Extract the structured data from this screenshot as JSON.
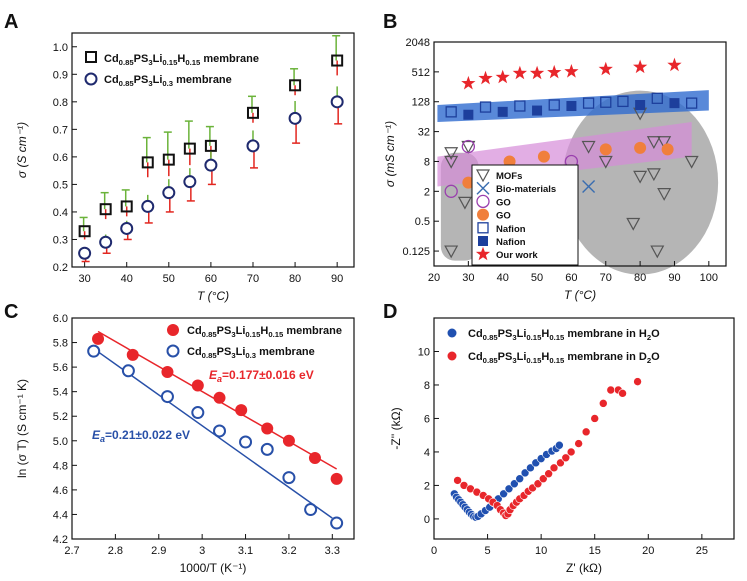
{
  "panels": {
    "A": "A",
    "B": "B",
    "C": "C",
    "D": "D"
  },
  "colors": {
    "black": "#111111",
    "navy": "#1f2a6e",
    "red": "#e8262b",
    "green": "#6bb33a",
    "errorRed": "#e2261f",
    "blue": "#2850a8",
    "lightBlue": "#2f6bd0",
    "orange": "#f07f3c",
    "purple": "#9a3fae",
    "gray": "#a8a8a8",
    "pink": "#d58bd9"
  },
  "chart_data": [
    {
      "panel": "A",
      "type": "scatter",
      "xlabel": "T (°C)",
      "ylabel": "σ (S cm⁻¹)",
      "xlim": [
        27,
        94
      ],
      "ylim": [
        0.2,
        1.05
      ],
      "xticks": [
        30,
        40,
        50,
        60,
        70,
        80,
        90
      ],
      "yticks": [
        0.2,
        0.3,
        0.4,
        0.5,
        0.6,
        0.7,
        0.8,
        0.9,
        1.0
      ],
      "legend": [
        "Cd0.85PS3Li0.15H0.15 membrane",
        "Cd0.85PS3Li0.3 membrane"
      ],
      "series": [
        {
          "name": "Cd0.85PS3Li0.15H0.15 membrane",
          "marker": "square",
          "x": [
            30,
            35,
            40,
            45,
            50,
            55,
            60,
            70,
            80,
            90
          ],
          "y": [
            0.33,
            0.41,
            0.42,
            0.58,
            0.59,
            0.63,
            0.64,
            0.76,
            0.86,
            0.95
          ],
          "err": [
            0.05,
            0.06,
            0.06,
            0.09,
            0.1,
            0.1,
            0.07,
            0.06,
            0.06,
            0.09
          ]
        },
        {
          "name": "Cd0.85PS3Li0.3 membrane",
          "marker": "circle",
          "x": [
            30,
            35,
            40,
            45,
            50,
            55,
            60,
            70,
            80,
            90
          ],
          "y": [
            0.25,
            0.29,
            0.34,
            0.42,
            0.47,
            0.51,
            0.57,
            0.64,
            0.74,
            0.8
          ],
          "err": [
            0.03,
            0.04,
            0.04,
            0.06,
            0.07,
            0.07,
            0.07,
            0.08,
            0.09,
            0.08
          ]
        }
      ]
    },
    {
      "panel": "B",
      "type": "scatter",
      "xlabel": "T (°C)",
      "ylabel": "σ (mS cm⁻¹)",
      "xlim": [
        20,
        105
      ],
      "ylim": [
        0.0625,
        2048
      ],
      "yscale": "log2",
      "xticks": [
        20,
        30,
        40,
        50,
        60,
        70,
        80,
        90,
        100
      ],
      "yticks": [
        0.125,
        0.5,
        2,
        8,
        32,
        128,
        512,
        2048
      ],
      "yticklabels": [
        "0.125",
        "0.5",
        "2",
        "8",
        "32",
        "128",
        "512",
        "2048"
      ],
      "legend": [
        "MOFs",
        "Bio-materials",
        "GO",
        "GO",
        "Nafion",
        "Nafion",
        "Our work"
      ],
      "series": [
        {
          "name": "MOFs",
          "marker": "triangle-down",
          "points": [
            [
              25,
              0.125
            ],
            [
              25,
              12
            ],
            [
              25,
              8
            ],
            [
              29,
              1.2
            ],
            [
              30,
              16
            ],
            [
              60,
              2
            ],
            [
              65,
              16
            ],
            [
              70,
              8
            ],
            [
              78,
              0.45
            ],
            [
              80,
              4
            ],
            [
              84,
              20
            ],
            [
              84,
              4.5
            ],
            [
              85,
              0.125
            ],
            [
              87,
              1.8
            ],
            [
              87,
              20
            ],
            [
              95,
              8
            ],
            [
              80,
              75
            ]
          ]
        },
        {
          "name": "Bio-materials",
          "marker": "x",
          "points": [
            [
              65,
              2.5
            ]
          ]
        },
        {
          "name": "GO",
          "marker": "open-circle",
          "points": [
            [
              25,
              2
            ],
            [
              30,
              16
            ],
            [
              60,
              8
            ]
          ]
        },
        {
          "name": "GO",
          "marker": "filled-circle",
          "points": [
            [
              30,
              3
            ],
            [
              42,
              8
            ],
            [
              52,
              10
            ],
            [
              70,
              14
            ],
            [
              80,
              15
            ],
            [
              88,
              14
            ]
          ]
        },
        {
          "name": "Nafion",
          "marker": "open-square",
          "points": [
            [
              25,
              80
            ],
            [
              35,
              100
            ],
            [
              45,
              105
            ],
            [
              55,
              110
            ],
            [
              65,
              120
            ],
            [
              70,
              125
            ],
            [
              75,
              130
            ],
            [
              85,
              150
            ],
            [
              95,
              120
            ]
          ]
        },
        {
          "name": "Nafion",
          "marker": "filled-square",
          "points": [
            [
              30,
              70
            ],
            [
              40,
              80
            ],
            [
              50,
              85
            ],
            [
              60,
              105
            ],
            [
              80,
              110
            ],
            [
              90,
              120
            ]
          ]
        },
        {
          "name": "Our work",
          "marker": "star",
          "points": [
            [
              30,
              300
            ],
            [
              35,
              380
            ],
            [
              40,
              400
            ],
            [
              45,
              480
            ],
            [
              50,
              480
            ],
            [
              55,
              500
            ],
            [
              60,
              520
            ],
            [
              70,
              580
            ],
            [
              80,
              640
            ],
            [
              90,
              700
            ]
          ]
        }
      ]
    },
    {
      "panel": "C",
      "type": "scatter",
      "xlabel": "1000/T (K⁻¹)",
      "ylabel": "ln (σ T) (S cm⁻¹ K)",
      "xlim": [
        2.7,
        3.35
      ],
      "ylim": [
        4.2,
        6.0
      ],
      "xticks": [
        2.7,
        2.8,
        2.9,
        3.0,
        3.1,
        3.2,
        3.3
      ],
      "yticks": [
        4.2,
        4.4,
        4.6,
        4.8,
        5.0,
        5.2,
        5.4,
        5.6,
        5.8,
        6.0
      ],
      "legend": [
        "Cd0.85PS3Li0.15H0.15 membrane",
        "Cd0.85PS3Li0.3 membrane"
      ],
      "annotations": [
        {
          "prefix": "E",
          "sub": "a",
          "value": "=0.177±0.016 eV"
        },
        {
          "prefix": "E",
          "sub": "a",
          "value": "=0.21±0.022 eV"
        }
      ],
      "series": [
        {
          "name": "Cd0.85PS3Li0.15H0.15 membrane",
          "marker": "filled-circle",
          "x": [
            2.76,
            2.84,
            2.92,
            2.99,
            3.04,
            3.09,
            3.15,
            3.2,
            3.26,
            3.31
          ],
          "y": [
            5.83,
            5.7,
            5.56,
            5.45,
            5.35,
            5.25,
            5.1,
            5.0,
            4.86,
            4.69
          ],
          "fit": [
            [
              2.76,
              5.89
            ],
            [
              3.31,
              4.77
            ]
          ]
        },
        {
          "name": "Cd0.85PS3Li0.3 membrane",
          "marker": "open-circle",
          "x": [
            2.75,
            2.83,
            2.92,
            2.99,
            3.04,
            3.1,
            3.15,
            3.2,
            3.25,
            3.31
          ],
          "y": [
            5.73,
            5.57,
            5.36,
            5.23,
            5.08,
            4.99,
            4.93,
            4.7,
            4.44,
            4.33
          ],
          "fit": [
            [
              2.75,
              5.75
            ],
            [
              3.3,
              4.37
            ]
          ]
        }
      ]
    },
    {
      "panel": "D",
      "type": "scatter",
      "xlabel": "Z' (kΩ)",
      "ylabel": "-Z'' (kΩ)",
      "xlim": [
        0,
        28
      ],
      "ylim": [
        -1.2,
        12
      ],
      "xticks": [
        0,
        5,
        10,
        15,
        20,
        25
      ],
      "yticks": [
        0,
        2,
        4,
        6,
        8,
        10
      ],
      "legend": [
        "Cd0.85PS3Li0.15H0.15 membrane in H2O",
        "Cd0.85PS3Li0.15H0.15 membrane in D2O"
      ],
      "series": [
        {
          "name": "Cd0.85PS3Li0.15H0.15 membrane in H2O",
          "marker": "filled-circle",
          "points": [
            [
              1.9,
              1.5
            ],
            [
              2.1,
              1.3
            ],
            [
              2.3,
              1.15
            ],
            [
              2.5,
              1.0
            ],
            [
              2.7,
              0.85
            ],
            [
              2.9,
              0.7
            ],
            [
              3.1,
              0.55
            ],
            [
              3.3,
              0.4
            ],
            [
              3.5,
              0.27
            ],
            [
              3.7,
              0.15
            ],
            [
              3.9,
              0.1
            ],
            [
              4.1,
              0.15
            ],
            [
              4.4,
              0.3
            ],
            [
              4.8,
              0.5
            ],
            [
              5.2,
              0.7
            ],
            [
              5.6,
              0.95
            ],
            [
              6.0,
              1.2
            ],
            [
              6.5,
              1.5
            ],
            [
              7.0,
              1.8
            ],
            [
              7.5,
              2.1
            ],
            [
              8.0,
              2.4
            ],
            [
              8.5,
              2.75
            ],
            [
              9.0,
              3.05
            ],
            [
              9.5,
              3.35
            ],
            [
              10.0,
              3.6
            ],
            [
              10.5,
              3.85
            ],
            [
              11.0,
              4.05
            ],
            [
              11.4,
              4.2
            ],
            [
              11.7,
              4.4
            ]
          ]
        },
        {
          "name": "Cd0.85PS3Li0.15H0.15 membrane in D2O",
          "marker": "filled-circle",
          "points": [
            [
              2.2,
              2.3
            ],
            [
              2.8,
              2.0
            ],
            [
              3.4,
              1.8
            ],
            [
              4.0,
              1.6
            ],
            [
              4.6,
              1.4
            ],
            [
              5.1,
              1.2
            ],
            [
              5.5,
              1.0
            ],
            [
              5.9,
              0.8
            ],
            [
              6.2,
              0.55
            ],
            [
              6.5,
              0.35
            ],
            [
              6.7,
              0.2
            ],
            [
              6.9,
              0.3
            ],
            [
              7.1,
              0.55
            ],
            [
              7.4,
              0.8
            ],
            [
              7.7,
              1.0
            ],
            [
              8.0,
              1.2
            ],
            [
              8.4,
              1.4
            ],
            [
              8.8,
              1.65
            ],
            [
              9.2,
              1.85
            ],
            [
              9.7,
              2.1
            ],
            [
              10.2,
              2.4
            ],
            [
              10.7,
              2.7
            ],
            [
              11.2,
              3.05
            ],
            [
              11.8,
              3.35
            ],
            [
              12.3,
              3.65
            ],
            [
              12.8,
              4.0
            ],
            [
              13.5,
              4.5
            ],
            [
              14.2,
              5.2
            ],
            [
              15.0,
              6.0
            ],
            [
              15.8,
              6.9
            ],
            [
              16.5,
              7.7
            ],
            [
              17.2,
              7.7
            ],
            [
              17.6,
              7.5
            ],
            [
              19.0,
              8.2
            ]
          ]
        }
      ]
    }
  ]
}
